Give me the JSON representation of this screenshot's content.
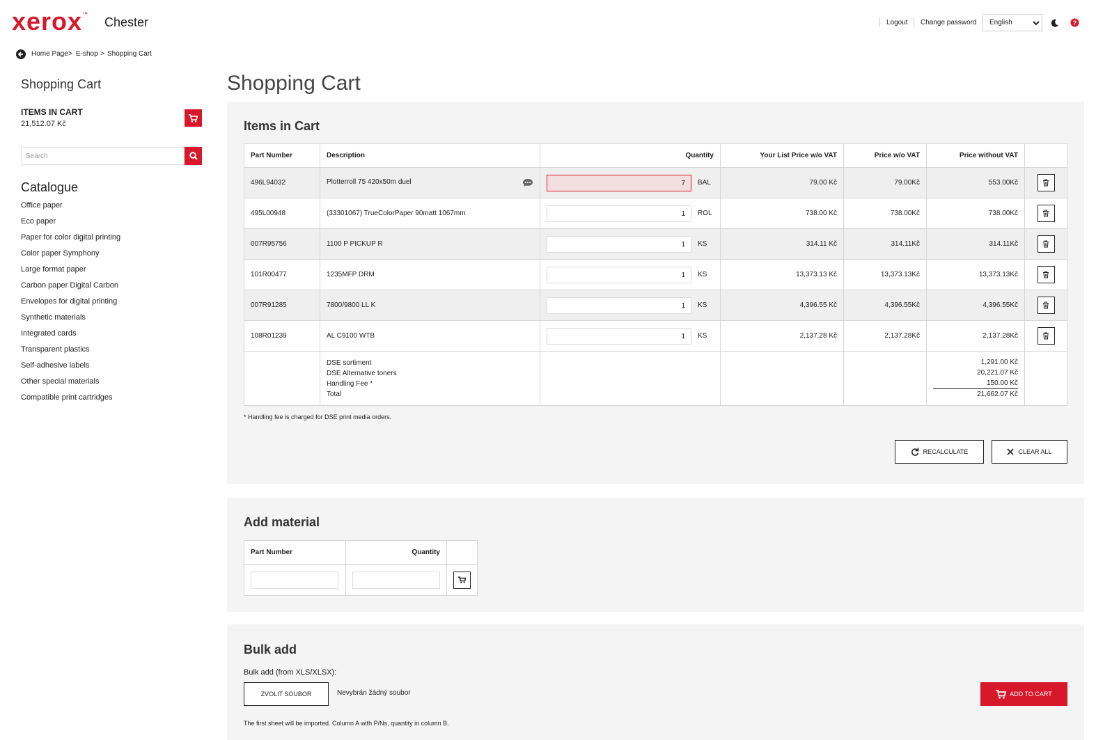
{
  "header": {
    "logo": "xerox",
    "trademark": "™",
    "site": "Chester",
    "links": [
      "Logout",
      "Change password"
    ],
    "language": "English"
  },
  "breadcrumb": {
    "items": [
      "Home Page",
      "E-shop",
      "Shopping Cart"
    ],
    "separator": ">"
  },
  "sidebar": {
    "title": "Shopping Cart",
    "items_label": "ITEMS IN CART",
    "items_total": "21,512.07 Kč",
    "search_placeholder": "Search",
    "catalogue_title": "Catalogue",
    "catalogue": [
      "Office paper",
      "Eco paper",
      "Paper for color digital printing",
      "Color paper Symphony",
      "Large format paper",
      "Carbon paper Digital Carbon",
      "Envelopes for digital printing",
      "Synthetic materials",
      "Integrated cards",
      "Transparent plastics",
      "Self-adhesive labels",
      "Other special materials",
      "Compatible print cartridges"
    ]
  },
  "main": {
    "title": "Shopping Cart"
  },
  "cart": {
    "title": "Items in Cart",
    "columns": [
      "Part Number",
      "Description",
      "Quantity",
      "Your List Price w/o VAT",
      "Price w/o VAT",
      "Price without VAT"
    ],
    "rows": [
      [
        "496L94032",
        "Plotterroll 75 420x50m duel",
        "7",
        "BAL",
        "79.00 Kč",
        "79.00Kč",
        "553.00Kč"
      ],
      [
        "495L00948",
        "(33301067) TrueColorPaper 90matt 1067mm",
        "1",
        "ROL",
        "738.00 Kč",
        "738.00Kč",
        "738.00Kč"
      ],
      [
        "007R95756",
        "1100 P PICKUP R",
        "1",
        "KS",
        "314.11 Kč",
        "314.11Kč",
        "314.11Kč"
      ],
      [
        "101R00477",
        "1235MFP DRM",
        "1",
        "KS",
        "13,373.13 Kč",
        "13,373.13Kč",
        "13,373.13Kč"
      ],
      [
        "007R91285",
        "7800/9800 LL K",
        "1",
        "KS",
        "4,396.55 Kč",
        "4,396.55Kč",
        "4,396.55Kč"
      ],
      [
        "108R01239",
        "AL C9100 WTB",
        "1",
        "KS",
        "2,137.28 Kč",
        "2,137.28Kč",
        "2,137.28Kč"
      ]
    ],
    "summary": {
      "labels": [
        "DSE sortiment",
        "DSE Alternative toners",
        "Handling Fee *",
        "Total"
      ],
      "values": [
        "1,291.00 Kč",
        "20,221.07 Kč",
        "150.00 Kč",
        "21,662.07 Kč"
      ]
    },
    "footnote": "* Handling fee is charged for DSE print media orders.",
    "buttons": [
      "RECALCULATE",
      "CLEAR ALL"
    ]
  },
  "add_material": {
    "title": "Add material",
    "columns": [
      "Part Number",
      "Quantity"
    ]
  },
  "bulk_add": {
    "title": "Bulk add",
    "label": "Bulk add (from XLS/XLSX):",
    "file_button": "ZVOLIT SOUBOR",
    "file_status": "Nevybrán žádný soubor",
    "note": "The first sheet will be imported. Column A with P/Ns, quantity in column B.",
    "submit": "ADD TO CART"
  }
}
